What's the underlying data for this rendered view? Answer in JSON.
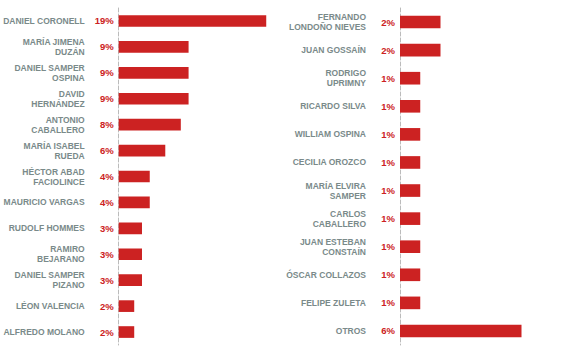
{
  "chart_data": [
    {
      "type": "bar",
      "orientation": "horizontal",
      "categories": [
        "DANIEL CORONELL",
        "MARÍA JIMENA\nDUZÁN",
        "DANIEL SAMPER\nOSPINA",
        "DAVID\nHERNÁNDEZ",
        "ANTONIO\nCABALLERO",
        "MARÍA ISABEL\nRUEDA",
        "HÉCTOR ABAD\nFACIOLINCE",
        "MAURICIO VARGAS",
        "RUDOLF HOMMES",
        "RAMIRO\nBEJARANO",
        "DANIEL SAMPER\nPIZANO",
        "LÉON VALENCIA",
        "ALFREDO MOLANO"
      ],
      "values": [
        19,
        9,
        9,
        9,
        8,
        6,
        4,
        4,
        3,
        3,
        3,
        2,
        2
      ],
      "value_labels": [
        "19%",
        "9%",
        "9%",
        "9%",
        "8%",
        "6%",
        "4%",
        "4%",
        "3%",
        "3%",
        "3%",
        "2%",
        "2%"
      ],
      "color": "#cc2222",
      "xlim": [
        0,
        20
      ],
      "data_labels": true,
      "tick_labels": "y",
      "grid": false
    },
    {
      "type": "bar",
      "orientation": "horizontal",
      "categories": [
        "FERNANDO\nLONDOÑO NIEVES",
        "JUAN GOSSAÍN",
        "RODRIGO\nUPRIMNY",
        "RICARDO SILVA",
        "WILLIAM OSPINA",
        "CECILIA OROZCO",
        "MARÍA ELVIRA\nSAMPER",
        "CARLOS\nCABALLERO",
        "JUAN ESTEBAN\nCONSTAÍN",
        "ÓSCAR COLLAZOS",
        "FELIPE ZULETA",
        "OTROS"
      ],
      "values": [
        2,
        2,
        1,
        1,
        1,
        1,
        1,
        1,
        1,
        1,
        1,
        6
      ],
      "value_labels": [
        "2%",
        "2%",
        "1%",
        "1%",
        "1%",
        "1%",
        "1%",
        "1%",
        "1%",
        "1%",
        "1%",
        "6%"
      ],
      "color": "#cc2222",
      "xlim": [
        0,
        8
      ],
      "data_labels": true,
      "tick_labels": "y",
      "grid": false
    }
  ]
}
